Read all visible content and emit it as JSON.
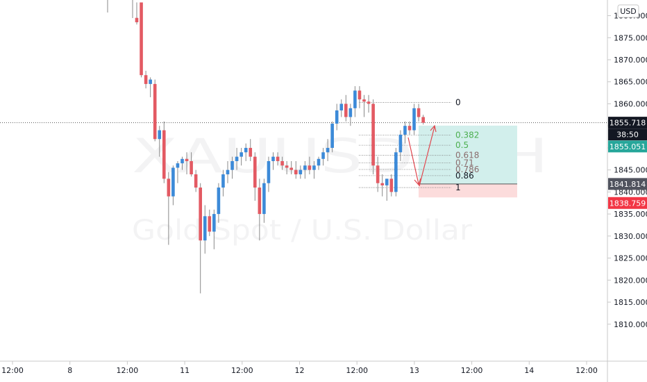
{
  "watermark": {
    "symbol": "XAUUSD, 1H",
    "name": "Gold Spot / U.S. Dollar"
  },
  "currency": "USD",
  "colors": {
    "up": "#3c8ad8",
    "down": "#e35a63",
    "wick": "#888888",
    "target_zone": "#d2efec",
    "stop_zone": "#fcdcdc",
    "fib_green": "#4caf50",
    "fib_brown": "#8a6d6d",
    "arrow": "#e0464e"
  },
  "chart_data": {
    "type": "candlestick",
    "y_axis": {
      "min": 1805,
      "max": 1883,
      "ticks": [
        "1810.000",
        "1815.000",
        "1820.000",
        "1825.000",
        "1830.000",
        "1835.000",
        "1840.000",
        "1845.000",
        "1850.000",
        "1855.000",
        "1860.000",
        "1865.000",
        "1870.000",
        "1875.000",
        "1880.000"
      ]
    },
    "x_axis": {
      "ticks": [
        "12:00",
        "8",
        "12:00",
        "11",
        "12:00",
        "12",
        "12:00",
        "13",
        "12:00",
        "14",
        "12:00"
      ]
    },
    "price_tags": [
      {
        "value": "1855.718",
        "kind": "last"
      },
      {
        "value": "38:50",
        "kind": "countdown"
      },
      {
        "value": "1855.051",
        "kind": "target"
      },
      {
        "value": "1841.814",
        "kind": "entry"
      },
      {
        "value": "1838.759",
        "kind": "stop"
      }
    ],
    "candles": [
      {
        "o": 1879.5,
        "h": 1883,
        "l": 1878,
        "c": 1878.5
      },
      {
        "o": 1883,
        "h": 1883,
        "l": 1866,
        "c": 1866.5
      },
      {
        "o": 1866.5,
        "h": 1867.5,
        "l": 1863.5,
        "c": 1864.5
      },
      {
        "o": 1864.5,
        "h": 1866,
        "l": 1861.5,
        "c": 1865.5
      },
      {
        "o": 1864.5,
        "h": 1865.5,
        "l": 1851.5,
        "c": 1852
      },
      {
        "o": 1852,
        "h": 1855,
        "l": 1848,
        "c": 1854
      },
      {
        "o": 1854,
        "h": 1856,
        "l": 1842,
        "c": 1843
      },
      {
        "o": 1843,
        "h": 1844.5,
        "l": 1828,
        "c": 1839
      },
      {
        "o": 1839,
        "h": 1846,
        "l": 1837,
        "c": 1845.5
      },
      {
        "o": 1845.5,
        "h": 1847,
        "l": 1842,
        "c": 1846.5
      },
      {
        "o": 1846.5,
        "h": 1848,
        "l": 1845,
        "c": 1847.5
      },
      {
        "o": 1847.5,
        "h": 1849,
        "l": 1844,
        "c": 1847
      },
      {
        "o": 1847,
        "h": 1849,
        "l": 1843.5,
        "c": 1844
      },
      {
        "o": 1844,
        "h": 1845,
        "l": 1840,
        "c": 1841
      },
      {
        "o": 1841,
        "h": 1842,
        "l": 1817,
        "c": 1829
      },
      {
        "o": 1829,
        "h": 1837,
        "l": 1826,
        "c": 1834.5
      },
      {
        "o": 1834.5,
        "h": 1836,
        "l": 1830,
        "c": 1831
      },
      {
        "o": 1831,
        "h": 1836,
        "l": 1827,
        "c": 1835
      },
      {
        "o": 1835,
        "h": 1842,
        "l": 1833,
        "c": 1841
      },
      {
        "o": 1841,
        "h": 1845,
        "l": 1839,
        "c": 1844
      },
      {
        "o": 1844,
        "h": 1847,
        "l": 1842,
        "c": 1845
      },
      {
        "o": 1845,
        "h": 1848,
        "l": 1843,
        "c": 1847
      },
      {
        "o": 1847,
        "h": 1850,
        "l": 1845,
        "c": 1848
      },
      {
        "o": 1848,
        "h": 1850,
        "l": 1846,
        "c": 1849
      },
      {
        "o": 1849,
        "h": 1851,
        "l": 1847,
        "c": 1850
      },
      {
        "o": 1850,
        "h": 1852,
        "l": 1847,
        "c": 1848
      },
      {
        "o": 1848,
        "h": 1849,
        "l": 1838,
        "c": 1841
      },
      {
        "o": 1841,
        "h": 1843,
        "l": 1829,
        "c": 1835
      },
      {
        "o": 1835,
        "h": 1843,
        "l": 1833,
        "c": 1842
      },
      {
        "o": 1842,
        "h": 1848,
        "l": 1840,
        "c": 1847
      },
      {
        "o": 1847,
        "h": 1849,
        "l": 1845,
        "c": 1848
      },
      {
        "o": 1848,
        "h": 1849,
        "l": 1846,
        "c": 1847
      },
      {
        "o": 1847,
        "h": 1848,
        "l": 1845,
        "c": 1846
      },
      {
        "o": 1846,
        "h": 1847,
        "l": 1844,
        "c": 1845.5
      },
      {
        "o": 1845.5,
        "h": 1847,
        "l": 1844,
        "c": 1845
      },
      {
        "o": 1845,
        "h": 1847,
        "l": 1843,
        "c": 1844
      },
      {
        "o": 1844,
        "h": 1846,
        "l": 1843,
        "c": 1845
      },
      {
        "o": 1845,
        "h": 1847,
        "l": 1843,
        "c": 1846
      },
      {
        "o": 1846,
        "h": 1848,
        "l": 1844,
        "c": 1845
      },
      {
        "o": 1845,
        "h": 1847,
        "l": 1843,
        "c": 1846
      },
      {
        "o": 1846,
        "h": 1848,
        "l": 1845,
        "c": 1847.5
      },
      {
        "o": 1847.5,
        "h": 1850,
        "l": 1846,
        "c": 1849
      },
      {
        "o": 1849,
        "h": 1852,
        "l": 1847,
        "c": 1850
      },
      {
        "o": 1850,
        "h": 1856,
        "l": 1849,
        "c": 1855.5
      },
      {
        "o": 1855.5,
        "h": 1860,
        "l": 1854,
        "c": 1858.5
      },
      {
        "o": 1858.5,
        "h": 1861,
        "l": 1857,
        "c": 1860
      },
      {
        "o": 1860,
        "h": 1862,
        "l": 1856,
        "c": 1857
      },
      {
        "o": 1857,
        "h": 1860,
        "l": 1855,
        "c": 1859
      },
      {
        "o": 1859,
        "h": 1864,
        "l": 1857,
        "c": 1863
      },
      {
        "o": 1863,
        "h": 1864,
        "l": 1859,
        "c": 1861
      },
      {
        "o": 1861,
        "h": 1862,
        "l": 1857,
        "c": 1860.5
      },
      {
        "o": 1860.5,
        "h": 1862,
        "l": 1858,
        "c": 1860
      },
      {
        "o": 1860,
        "h": 1861,
        "l": 1844,
        "c": 1846
      },
      {
        "o": 1846,
        "h": 1848,
        "l": 1840,
        "c": 1842
      },
      {
        "o": 1842,
        "h": 1844,
        "l": 1839,
        "c": 1841.5
      },
      {
        "o": 1841.5,
        "h": 1843,
        "l": 1838,
        "c": 1843
      },
      {
        "o": 1843,
        "h": 1844,
        "l": 1839,
        "c": 1840
      },
      {
        "o": 1840,
        "h": 1850,
        "l": 1839,
        "c": 1849
      },
      {
        "o": 1849,
        "h": 1854,
        "l": 1847,
        "c": 1853
      },
      {
        "o": 1853,
        "h": 1856,
        "l": 1851,
        "c": 1855
      },
      {
        "o": 1855,
        "h": 1856,
        "l": 1853,
        "c": 1854
      },
      {
        "o": 1854,
        "h": 1860,
        "l": 1853,
        "c": 1859
      },
      {
        "o": 1859,
        "h": 1860,
        "l": 1856,
        "c": 1857
      },
      {
        "o": 1857,
        "h": 1857.5,
        "l": 1855.3,
        "c": 1855.7
      }
    ],
    "fibonacci": {
      "levels": [
        {
          "label": "0",
          "value": 1860.3,
          "tone": "black"
        },
        {
          "label": "0.382",
          "value": 1852.9,
          "tone": "green"
        },
        {
          "label": "0.5",
          "value": 1850.6,
          "tone": "green"
        },
        {
          "label": "0.618",
          "value": 1848.3,
          "tone": "brown"
        },
        {
          "label": "0.71",
          "value": 1846.6,
          "tone": "brown"
        },
        {
          "label": "0.786",
          "value": 1845.1,
          "tone": "brown"
        },
        {
          "label": "0.86",
          "value": 1843.7,
          "tone": "black"
        },
        {
          "label": "1",
          "value": 1841.0,
          "tone": "black"
        }
      ]
    },
    "position": {
      "target": 1855.051,
      "entry": 1841.814,
      "stop": 1838.759
    },
    "last_price": 1855.718
  }
}
